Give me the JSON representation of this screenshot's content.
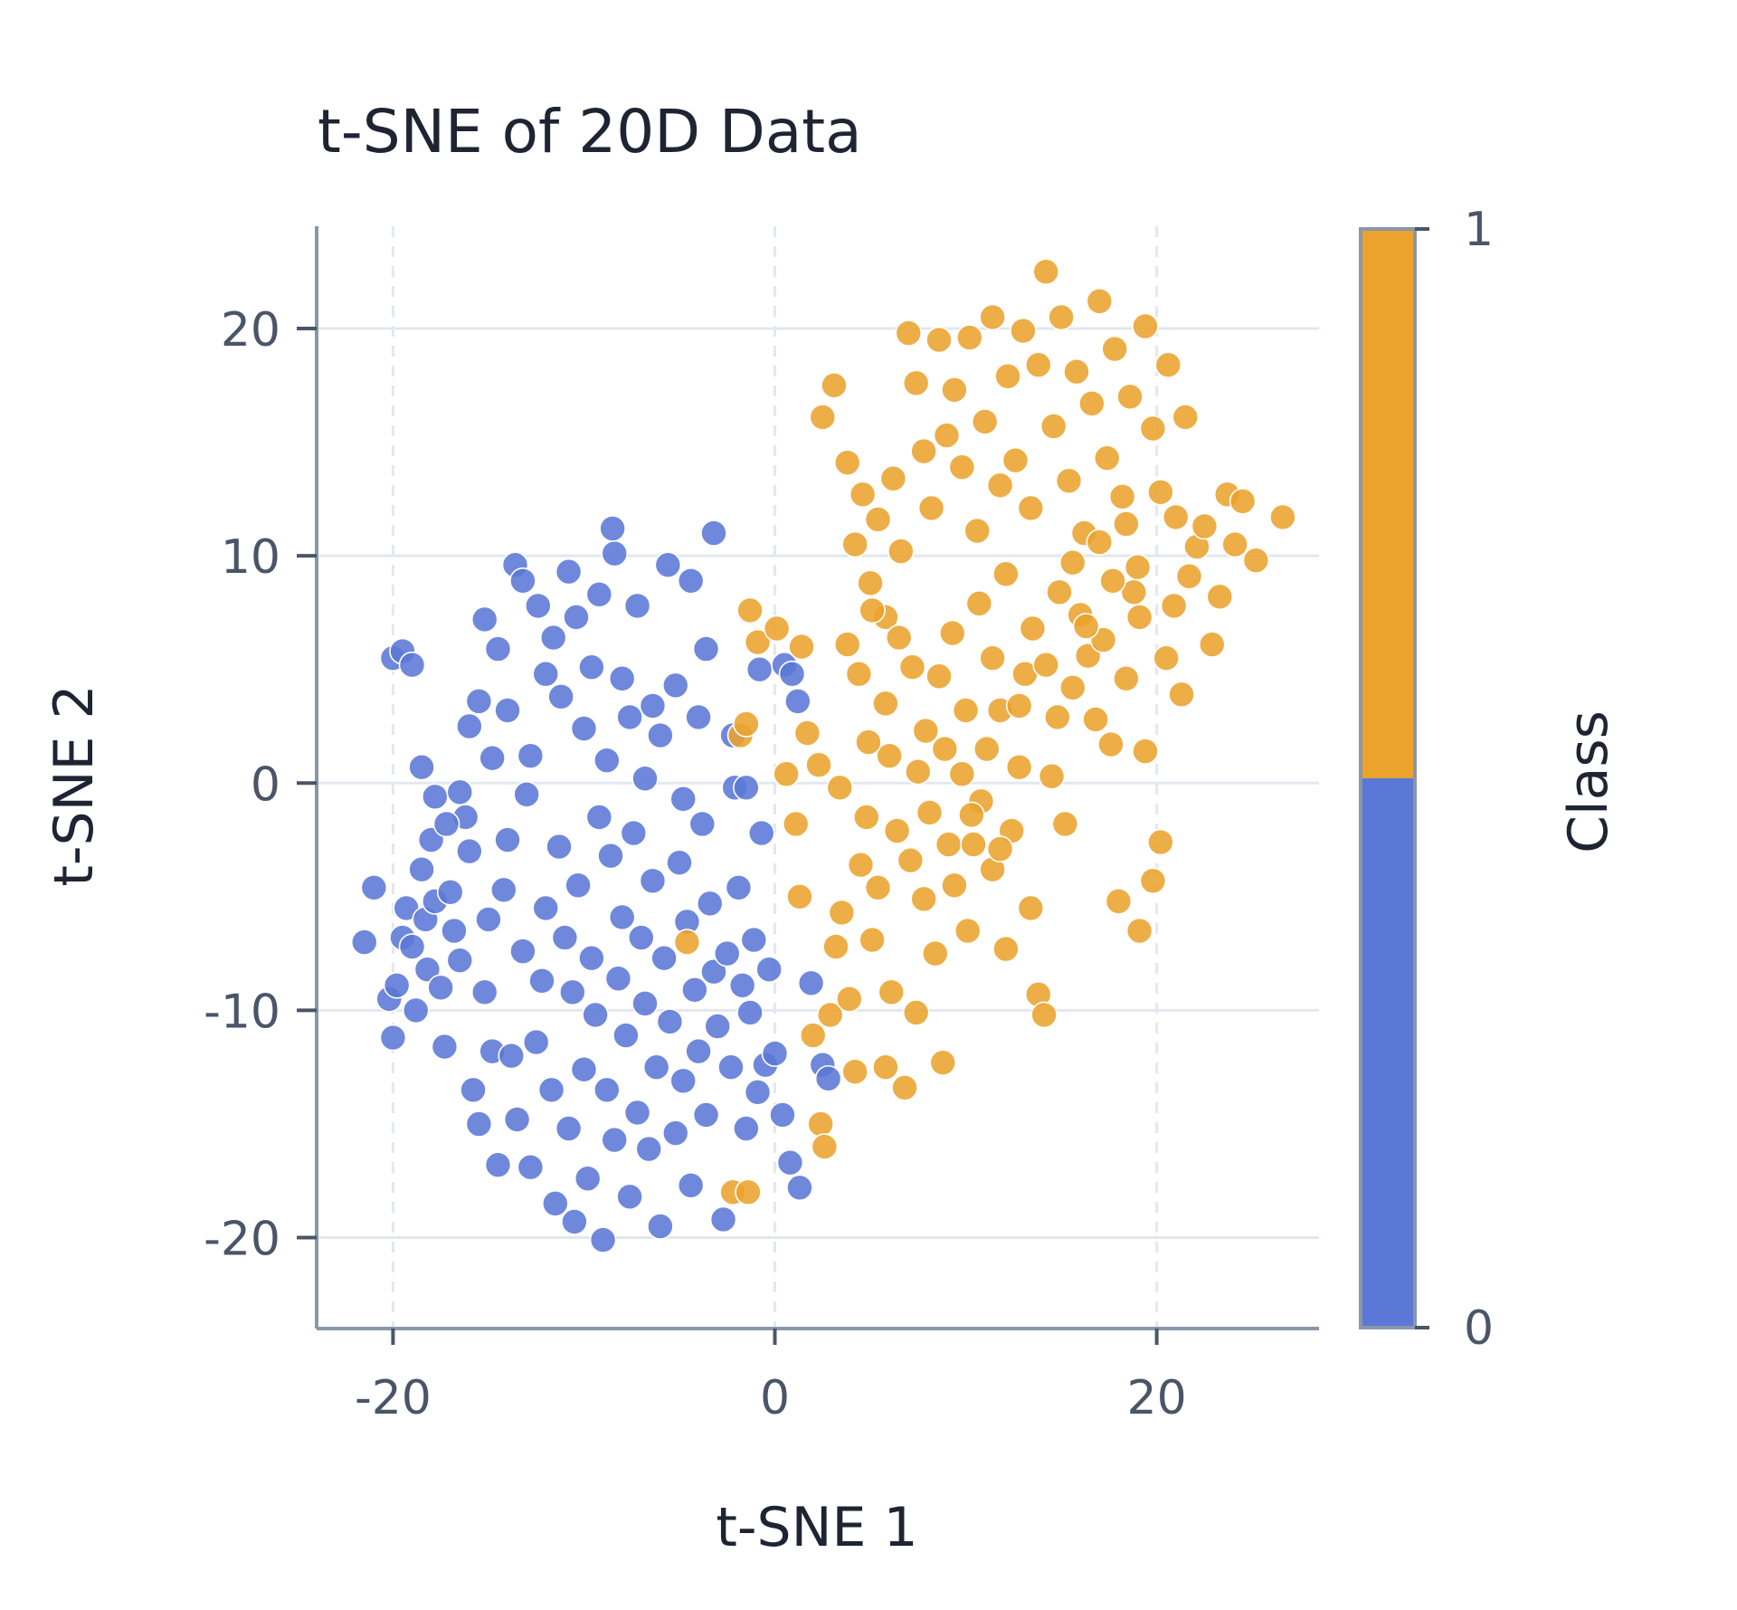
{
  "chart_data": {
    "type": "scatter",
    "title": "t-SNE of 20D Data",
    "xlabel": "t-SNE 1",
    "ylabel": "t-SNE 2",
    "xlim": [
      -24,
      28.5
    ],
    "ylim": [
      -24,
      24.5
    ],
    "xticks": [
      -20,
      0,
      20
    ],
    "xtick_labels": [
      "-20",
      "0",
      "20"
    ],
    "yticks": [
      -20,
      -10,
      0,
      10,
      20
    ],
    "ytick_labels": [
      "-20",
      "-10",
      "0",
      "10",
      "20"
    ],
    "grid": true,
    "colorbar": {
      "label": "Class",
      "ticks": [
        0,
        1
      ],
      "tick_labels": [
        "0",
        "1"
      ]
    },
    "colors": {
      "class_0": "#5b78d6",
      "class_1": "#eba32d",
      "axis": "#8a96aa",
      "grid": "#e3e8ee"
    },
    "series": [
      {
        "class": 0,
        "points": [
          [
            -21.5,
            -7
          ],
          [
            -21,
            -4.6
          ],
          [
            -20.2,
            -9.5
          ],
          [
            -20,
            -11.2
          ],
          [
            -19.8,
            -8.9
          ],
          [
            -19.5,
            -6.8
          ],
          [
            -19.3,
            -5.5
          ],
          [
            -19,
            -7.2
          ],
          [
            -18.8,
            -10
          ],
          [
            -18.5,
            -3.8
          ],
          [
            -18.3,
            -6
          ],
          [
            -18.2,
            -8.2
          ],
          [
            -18,
            -2.5
          ],
          [
            -17.8,
            -5.2
          ],
          [
            -17.5,
            -9
          ],
          [
            -17.3,
            -11.6
          ],
          [
            -17,
            -4.8
          ],
          [
            -16.8,
            -6.5
          ],
          [
            -16.5,
            -7.8
          ],
          [
            -16.2,
            -1.5
          ],
          [
            -16,
            -3
          ],
          [
            -15.8,
            -13.5
          ],
          [
            -15.5,
            -15
          ],
          [
            -15.2,
            -9.2
          ],
          [
            -15,
            -6
          ],
          [
            -14.8,
            -11.8
          ],
          [
            -14.5,
            -16.8
          ],
          [
            -14.2,
            -4.7
          ],
          [
            -14,
            -2.5
          ],
          [
            -13.8,
            -12
          ],
          [
            -13.5,
            -14.8
          ],
          [
            -13.2,
            -7.4
          ],
          [
            -13,
            -0.5
          ],
          [
            -12.8,
            -16.9
          ],
          [
            -12.5,
            -11.4
          ],
          [
            -12.2,
            -8.7
          ],
          [
            -12,
            -5.5
          ],
          [
            -11.7,
            -13.5
          ],
          [
            -11.5,
            -18.5
          ],
          [
            -11.3,
            -2.8
          ],
          [
            -11,
            -6.8
          ],
          [
            -10.8,
            -15.2
          ],
          [
            -10.6,
            -9.2
          ],
          [
            -10.5,
            -19.3
          ],
          [
            -10.3,
            -4.5
          ],
          [
            -10,
            -12.6
          ],
          [
            -9.8,
            -17.4
          ],
          [
            -9.6,
            -7.7
          ],
          [
            -9.4,
            -10.2
          ],
          [
            -9.2,
            -1.5
          ],
          [
            -9,
            -20.1
          ],
          [
            -8.8,
            -13.5
          ],
          [
            -8.6,
            -3.2
          ],
          [
            -8.4,
            -15.7
          ],
          [
            -8.2,
            -8.6
          ],
          [
            -8,
            -5.9
          ],
          [
            -7.8,
            -11.1
          ],
          [
            -7.6,
            -18.2
          ],
          [
            -7.4,
            -2.2
          ],
          [
            -7.2,
            -14.5
          ],
          [
            -7,
            -6.8
          ],
          [
            -6.8,
            -9.7
          ],
          [
            -6.6,
            -16.1
          ],
          [
            -6.4,
            -4.3
          ],
          [
            -6.2,
            -12.5
          ],
          [
            -6,
            -19.5
          ],
          [
            -5.8,
            -7.7
          ],
          [
            -5.5,
            -10.5
          ],
          [
            -5.2,
            -15.4
          ],
          [
            -5,
            -3.5
          ],
          [
            -4.8,
            -13.1
          ],
          [
            -4.6,
            -6.1
          ],
          [
            -4.4,
            -17.7
          ],
          [
            -4.2,
            -9.1
          ],
          [
            -4,
            -11.8
          ],
          [
            -3.8,
            -1.8
          ],
          [
            -3.6,
            -14.6
          ],
          [
            -3.4,
            -5.3
          ],
          [
            -3.2,
            -8.3
          ],
          [
            -3,
            -10.7
          ],
          [
            -2.7,
            -19.2
          ],
          [
            -2.5,
            -7.5
          ],
          [
            -2.3,
            -12.5
          ],
          [
            -2.1,
            -0.2
          ],
          [
            -1.9,
            -4.6
          ],
          [
            -1.7,
            -8.9
          ],
          [
            -1.5,
            -15.2
          ],
          [
            -1.3,
            -10.1
          ],
          [
            -1.1,
            -6.9
          ],
          [
            -0.9,
            -13.6
          ],
          [
            -0.7,
            -2.2
          ],
          [
            -0.5,
            -12.4
          ],
          [
            -0.3,
            -8.2
          ],
          [
            0,
            -11.9
          ],
          [
            0.4,
            -14.6
          ],
          [
            0.8,
            -16.7
          ],
          [
            1.3,
            -17.8
          ],
          [
            1.9,
            -8.8
          ],
          [
            2.5,
            -12.4
          ],
          [
            2.8,
            -13
          ],
          [
            -20,
            5.5
          ],
          [
            -19.5,
            5.8
          ],
          [
            -19,
            5.2
          ],
          [
            -18.5,
            0.7
          ],
          [
            -17.8,
            -0.6
          ],
          [
            -17.2,
            -1.8
          ],
          [
            -16.5,
            -0.4
          ],
          [
            -16,
            2.5
          ],
          [
            -15.5,
            3.6
          ],
          [
            -15.2,
            7.2
          ],
          [
            -14.8,
            1.1
          ],
          [
            -14.5,
            5.9
          ],
          [
            -14,
            3.2
          ],
          [
            -13.6,
            9.6
          ],
          [
            -13.2,
            8.9
          ],
          [
            -12.8,
            1.2
          ],
          [
            -12.4,
            7.8
          ],
          [
            -12,
            4.8
          ],
          [
            -11.6,
            6.4
          ],
          [
            -11.2,
            3.8
          ],
          [
            -10.8,
            9.3
          ],
          [
            -10.4,
            7.3
          ],
          [
            -10,
            2.4
          ],
          [
            -9.6,
            5.1
          ],
          [
            -9.2,
            8.3
          ],
          [
            -8.8,
            1
          ],
          [
            -8.4,
            10.1
          ],
          [
            -8,
            4.6
          ],
          [
            -7.6,
            2.9
          ],
          [
            -7.2,
            7.8
          ],
          [
            -6.8,
            0.2
          ],
          [
            -6.4,
            3.4
          ],
          [
            -6,
            2.1
          ],
          [
            -5.6,
            9.6
          ],
          [
            -5.2,
            4.3
          ],
          [
            -4.8,
            -0.7
          ],
          [
            -4.4,
            8.9
          ],
          [
            -4,
            2.9
          ],
          [
            -3.6,
            5.9
          ],
          [
            -3.2,
            11
          ],
          [
            -8.5,
            11.2
          ],
          [
            -2.2,
            2.1
          ],
          [
            -1.5,
            -0.2
          ],
          [
            -0.8,
            5
          ],
          [
            0.5,
            5.2
          ],
          [
            0.9,
            4.8
          ],
          [
            1.2,
            3.6
          ]
        ]
      },
      {
        "class": 1,
        "points": [
          [
            -4.6,
            -7
          ],
          [
            -2.2,
            -18
          ],
          [
            -1.4,
            -18
          ],
          [
            -1.8,
            2.1
          ],
          [
            -1.5,
            2.6
          ],
          [
            -1.3,
            7.6
          ],
          [
            -0.9,
            6.2
          ],
          [
            0.1,
            6.8
          ],
          [
            0.6,
            0.4
          ],
          [
            1.1,
            -1.8
          ],
          [
            1.3,
            -5
          ],
          [
            1.7,
            2.2
          ],
          [
            2,
            -11.1
          ],
          [
            2.4,
            -15
          ],
          [
            2.6,
            -16
          ],
          [
            2.9,
            -10.2
          ],
          [
            3.2,
            -7.2
          ],
          [
            3.5,
            -5.7
          ],
          [
            3.9,
            -9.5
          ],
          [
            4.2,
            -12.7
          ],
          [
            4.5,
            -3.6
          ],
          [
            4.8,
            -1.5
          ],
          [
            5.1,
            -6.9
          ],
          [
            5.4,
            -4.6
          ],
          [
            5.8,
            -12.5
          ],
          [
            6.1,
            -9.2
          ],
          [
            6.4,
            -2.1
          ],
          [
            6.8,
            -13.4
          ],
          [
            7.1,
            -3.4
          ],
          [
            7.4,
            -10.1
          ],
          [
            7.8,
            -5.1
          ],
          [
            8.1,
            -1.3
          ],
          [
            8.4,
            -7.5
          ],
          [
            8.8,
            -12.3
          ],
          [
            9.1,
            -2.7
          ],
          [
            9.4,
            -4.5
          ],
          [
            9.8,
            0.4
          ],
          [
            10.1,
            -6.5
          ],
          [
            10.4,
            -2.7
          ],
          [
            10.8,
            -0.8
          ],
          [
            11.1,
            1.5
          ],
          [
            11.4,
            -3.8
          ],
          [
            11.8,
            3.2
          ],
          [
            12.1,
            -7.3
          ],
          [
            12.4,
            -2.1
          ],
          [
            12.8,
            0.7
          ],
          [
            13.1,
            4.8
          ],
          [
            13.4,
            -5.5
          ],
          [
            13.8,
            -9.3
          ],
          [
            14.1,
            -10.2
          ],
          [
            14.5,
            0.3
          ],
          [
            14.8,
            2.9
          ],
          [
            15.2,
            -1.8
          ],
          [
            15.6,
            4.2
          ],
          [
            16,
            7.4
          ],
          [
            16.4,
            5.6
          ],
          [
            16.8,
            2.8
          ],
          [
            17.2,
            6.3
          ],
          [
            17.6,
            1.7
          ],
          [
            18,
            -5.2
          ],
          [
            18.4,
            4.6
          ],
          [
            18.8,
            8.4
          ],
          [
            19.1,
            -6.5
          ],
          [
            19.4,
            1.4
          ],
          [
            19.8,
            -4.3
          ],
          [
            20.2,
            -2.6
          ],
          [
            20.5,
            5.5
          ],
          [
            20.9,
            7.8
          ],
          [
            21.3,
            3.9
          ],
          [
            21.7,
            9.1
          ],
          [
            22.1,
            10.4
          ],
          [
            22.5,
            11.3
          ],
          [
            22.9,
            6.1
          ],
          [
            23.3,
            8.2
          ],
          [
            23.7,
            12.7
          ],
          [
            24.1,
            10.5
          ],
          [
            24.5,
            12.4
          ],
          [
            25.2,
            9.8
          ],
          [
            26.6,
            11.7
          ],
          [
            2.5,
            16.1
          ],
          [
            3.1,
            17.5
          ],
          [
            3.8,
            14.1
          ],
          [
            4.2,
            10.5
          ],
          [
            4.6,
            12.7
          ],
          [
            5,
            8.8
          ],
          [
            5.4,
            11.6
          ],
          [
            5.8,
            7.3
          ],
          [
            6.2,
            13.4
          ],
          [
            6.6,
            10.2
          ],
          [
            7,
            19.8
          ],
          [
            7.4,
            17.6
          ],
          [
            7.8,
            14.6
          ],
          [
            8.2,
            12.1
          ],
          [
            8.6,
            19.5
          ],
          [
            9,
            15.3
          ],
          [
            9.4,
            17.3
          ],
          [
            9.8,
            13.9
          ],
          [
            10.2,
            19.6
          ],
          [
            10.6,
            11.1
          ],
          [
            11,
            15.9
          ],
          [
            11.4,
            20.5
          ],
          [
            11.8,
            13.1
          ],
          [
            12.2,
            17.9
          ],
          [
            12.6,
            14.2
          ],
          [
            13,
            19.9
          ],
          [
            13.4,
            12.1
          ],
          [
            13.8,
            18.4
          ],
          [
            14.2,
            22.5
          ],
          [
            14.6,
            15.7
          ],
          [
            15,
            20.5
          ],
          [
            15.4,
            13.3
          ],
          [
            15.8,
            18.1
          ],
          [
            16.2,
            11
          ],
          [
            16.6,
            16.7
          ],
          [
            17,
            21.2
          ],
          [
            17.4,
            14.3
          ],
          [
            17.8,
            19.1
          ],
          [
            18.2,
            12.6
          ],
          [
            18.6,
            17
          ],
          [
            19,
            9.5
          ],
          [
            19.4,
            20.1
          ],
          [
            19.8,
            15.6
          ],
          [
            20.2,
            12.8
          ],
          [
            20.6,
            18.4
          ],
          [
            21,
            11.7
          ],
          [
            21.5,
            16.1
          ],
          [
            3.8,
            6.1
          ],
          [
            4.4,
            4.8
          ],
          [
            5.1,
            7.6
          ],
          [
            5.8,
            3.5
          ],
          [
            6.5,
            6.4
          ],
          [
            7.2,
            5.1
          ],
          [
            7.9,
            2.3
          ],
          [
            8.6,
            4.7
          ],
          [
            9.3,
            6.6
          ],
          [
            10,
            3.2
          ],
          [
            10.7,
            7.9
          ],
          [
            11.4,
            5.5
          ],
          [
            12.1,
            9.2
          ],
          [
            12.8,
            3.4
          ],
          [
            13.5,
            6.8
          ],
          [
            14.2,
            5.2
          ],
          [
            14.9,
            8.4
          ],
          [
            15.6,
            9.7
          ],
          [
            16.3,
            6.9
          ],
          [
            17,
            10.6
          ],
          [
            17.7,
            8.9
          ],
          [
            18.4,
            11.4
          ],
          [
            19.1,
            7.3
          ],
          [
            6,
            1.2
          ],
          [
            7.5,
            0.5
          ],
          [
            8.9,
            1.5
          ],
          [
            10.3,
            -1.4
          ],
          [
            11.8,
            -2.9
          ],
          [
            3.4,
            -0.2
          ],
          [
            4.9,
            1.8
          ],
          [
            2.3,
            0.8
          ],
          [
            1.4,
            6
          ]
        ]
      }
    ]
  }
}
